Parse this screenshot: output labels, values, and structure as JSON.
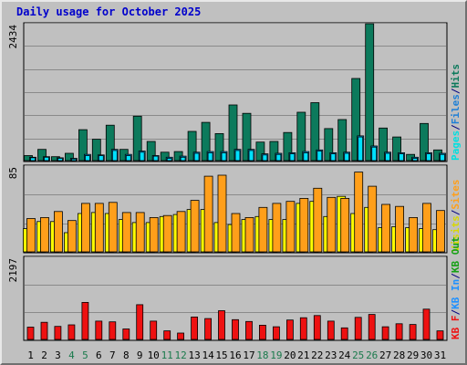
{
  "title": "Daily usage for October 2025",
  "colors": {
    "background": "#c0c0c0",
    "grid": "#8a8a8a",
    "hits": "#0c7a5c",
    "files": "#00b0ff",
    "pages": "#00e0ff",
    "visits": "#ffff00",
    "sites": "#ff9f1a",
    "kbin": "#1e90ff",
    "kbout": "#14a014",
    "kbf": "#ee1111"
  },
  "chart_data": [
    {
      "type": "bar",
      "panel": "hits-files-pages",
      "max_label": "2434",
      "legend": [
        {
          "text": "Pages",
          "color": "#00e0e0"
        },
        {
          "text": "/",
          "color": "#000080"
        },
        {
          "text": "Files",
          "color": "#1e7fd6"
        },
        {
          "text": "/",
          "color": "#000080"
        },
        {
          "text": "Hits",
          "color": "#0c7a5c"
        }
      ],
      "ylim": [
        0,
        2434
      ],
      "series": [
        {
          "name": "Hits",
          "values": [
            90,
            200,
            70,
            130,
            550,
            380,
            630,
            200,
            790,
            340,
            150,
            160,
            520,
            680,
            480,
            990,
            840,
            330,
            340,
            500,
            860,
            1030,
            570,
            730,
            1460,
            2434,
            580,
            420,
            110,
            660,
            190
          ]
        },
        {
          "name": "Files",
          "values": [
            60,
            70,
            50,
            40,
            110,
            100,
            200,
            110,
            170,
            90,
            60,
            80,
            150,
            160,
            160,
            200,
            200,
            120,
            130,
            140,
            160,
            190,
            140,
            150,
            440,
            260,
            150,
            140,
            60,
            140,
            130
          ]
        },
        {
          "name": "Pages",
          "values": [
            50,
            60,
            40,
            30,
            90,
            90,
            180,
            90,
            150,
            80,
            40,
            60,
            130,
            140,
            140,
            180,
            180,
            100,
            110,
            120,
            140,
            170,
            120,
            130,
            420,
            240,
            130,
            120,
            40,
            120,
            110
          ]
        }
      ]
    },
    {
      "type": "bar",
      "panel": "visits-sites",
      "max_label": "85",
      "legend": [
        {
          "text": "Visits",
          "color": "#d8d800"
        },
        {
          "text": "/",
          "color": "#000080"
        },
        {
          "text": "Sites",
          "color": "#ff9f1a"
        }
      ],
      "ylim": [
        0,
        85
      ],
      "series": [
        {
          "name": "Visits",
          "values": [
            23,
            30,
            30,
            19,
            38,
            39,
            38,
            32,
            29,
            29,
            35,
            37,
            42,
            42,
            29,
            27,
            32,
            35,
            32,
            32,
            48,
            50,
            35,
            55,
            38,
            44,
            24,
            25,
            24,
            23,
            22
          ]
        },
        {
          "name": "Sites",
          "values": [
            33,
            34,
            40,
            31,
            48,
            48,
            49,
            39,
            39,
            34,
            36,
            40,
            51,
            75,
            76,
            38,
            34,
            44,
            48,
            50,
            53,
            63,
            54,
            53,
            79,
            65,
            47,
            45,
            34,
            48,
            41
          ]
        }
      ]
    },
    {
      "type": "bar",
      "panel": "kbf-kbin-kbout",
      "max_label": "2197",
      "legend": [
        {
          "text": "KB F",
          "color": "#ee1111"
        },
        {
          "text": "/",
          "color": "#000080"
        },
        {
          "text": "KB In",
          "color": "#1e90ff"
        },
        {
          "text": "/",
          "color": "#000080"
        },
        {
          "text": "KB Out",
          "color": "#14a014"
        }
      ],
      "ylim": [
        0,
        2197
      ],
      "series": [
        {
          "name": "KB F",
          "values": [
            330,
            460,
            350,
            390,
            990,
            490,
            470,
            280,
            930,
            490,
            230,
            170,
            600,
            560,
            770,
            530,
            480,
            380,
            340,
            520,
            580,
            640,
            490,
            310,
            590,
            670,
            340,
            420,
            400,
            810,
            230
          ]
        }
      ]
    }
  ],
  "x_axis": {
    "labels": [
      "1",
      "2",
      "3",
      "4",
      "5",
      "6",
      "7",
      "8",
      "9",
      "10",
      "11",
      "12",
      "13",
      "14",
      "15",
      "16",
      "17",
      "18",
      "19",
      "20",
      "21",
      "22",
      "23",
      "24",
      "25",
      "26",
      "27",
      "28",
      "29",
      "30",
      "31"
    ],
    "weekend": [
      4,
      5,
      11,
      12,
      18,
      19,
      25,
      26
    ]
  }
}
